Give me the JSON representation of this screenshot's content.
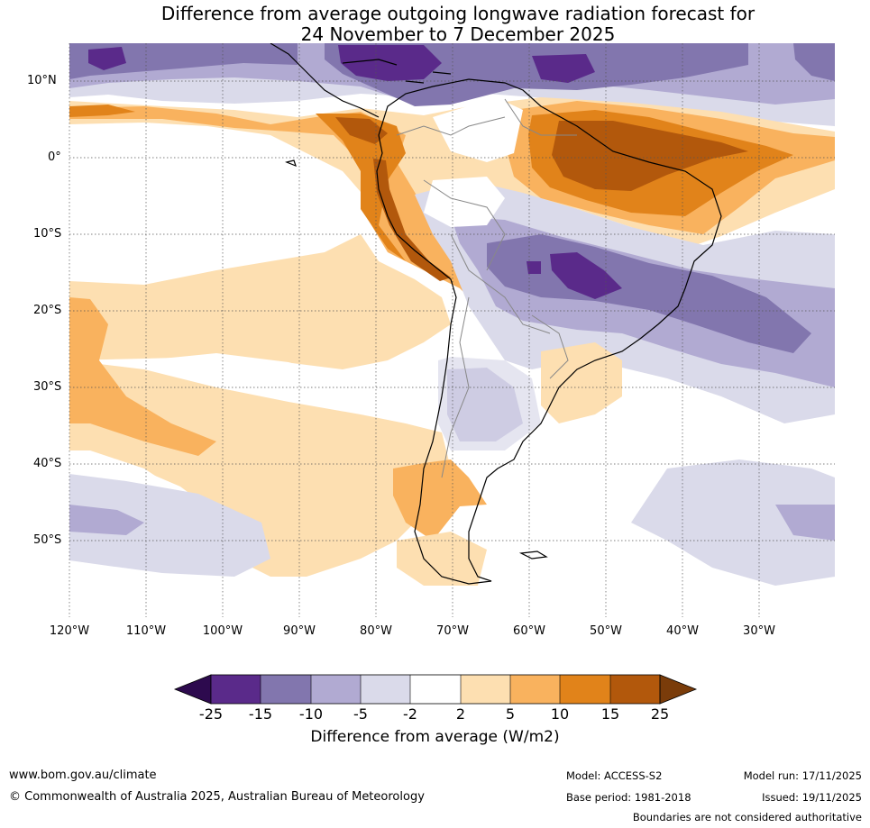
{
  "title": {
    "line1": "Difference from average outgoing longwave radiation forecast for",
    "line2": "24 November to 7 December 2025"
  },
  "map": {
    "latitude_labels": [
      "10°N",
      "0°",
      "10°S",
      "20°S",
      "30°S",
      "40°S",
      "50°S"
    ],
    "longitude_labels": [
      "120°W",
      "110°W",
      "100°W",
      "90°W",
      "80°W",
      "70°W",
      "60°W",
      "50°W",
      "40°W",
      "30°W"
    ],
    "extent": {
      "lon_min": -120,
      "lon_max": -20,
      "lat_min": -60,
      "lat_max": 15
    }
  },
  "colorbar": {
    "ticks": [
      "-25",
      "-15",
      "-10",
      "-5",
      "-2",
      "2",
      "5",
      "10",
      "15",
      "25"
    ],
    "label": "Difference from average (W/m2)",
    "colors": {
      "under": "#2d0a4e",
      "c1": "#5a2a8a",
      "c2": "#8276ae",
      "c3": "#b1aad2",
      "c4": "#dadaea",
      "c5": "#ffffff",
      "c6": "#fddfb1",
      "c7": "#f9b25e",
      "c8": "#e1831a",
      "c9": "#b2580c",
      "over": "#7a3c0a"
    }
  },
  "footer": {
    "website": "www.bom.gov.au/climate",
    "copyright": "© Commonwealth of Australia 2025, Australian Bureau of Meteorology",
    "model": "Model: ACCESS-S2",
    "base_period": "Base period: 1981-2018",
    "model_run": "Model run: 17/11/2025",
    "issued": "Issued: 19/11/2025",
    "disclaimer": "Boundaries are not considered authoritative"
  }
}
